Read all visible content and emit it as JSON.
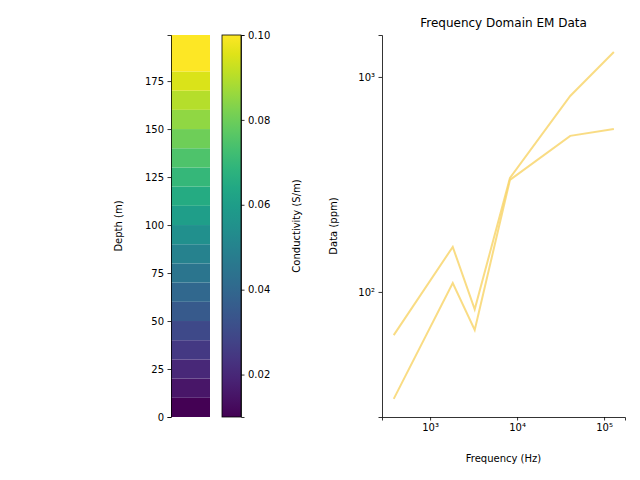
{
  "chart_data": [
    {
      "type": "layers",
      "ylabel": "Depth (m)",
      "depths": [
        0,
        10,
        20,
        30,
        40,
        50,
        60,
        70,
        80,
        90,
        100,
        110,
        120,
        130,
        140,
        150,
        160,
        170,
        180
      ],
      "values": [
        0.01,
        0.015,
        0.02,
        0.025,
        0.03,
        0.035,
        0.04,
        0.045,
        0.05,
        0.055,
        0.06,
        0.065,
        0.07,
        0.075,
        0.08,
        0.085,
        0.09,
        0.095,
        0.1
      ],
      "ylim": [
        0,
        199
      ],
      "yticks": [
        0,
        25,
        50,
        75,
        100,
        125,
        150,
        175
      ],
      "tick_labels": "y",
      "colorbar": {
        "label": "Conductivity (S/m)",
        "range": [
          0.01,
          0.1
        ],
        "ticks": [
          0.02,
          0.04,
          0.06,
          0.08,
          {
            "value": 0.1,
            "label": "0.10"
          }
        ]
      }
    },
    {
      "type": "line",
      "title": "Frequency Domain EM Data",
      "xlabel": "Frequency (Hz)",
      "ylabel": "Data (ppm)",
      "log": true,
      "x": [
        382,
        1822,
        3258,
        8282,
        40820,
        129550
      ],
      "series": [
        {
          "color": "#f8d66e",
          "values": [
            63,
            162,
            83,
            339,
            816,
            1306
          ]
        },
        {
          "color": "#f8d66e",
          "values": [
            31.8,
            110,
            66.5,
            332,
            532,
            573
          ]
        }
      ],
      "xlim": [
        280,
        174000
      ],
      "ylim": [
        26.2,
        1567
      ],
      "xticks": [
        {
          "value": 1000,
          "label": "10³"
        },
        {
          "value": 10000,
          "label": "10⁴"
        },
        {
          "value": 100000,
          "label": "10⁵"
        }
      ],
      "yticks": [
        {
          "value": 100,
          "label": "10²"
        },
        {
          "value": 1000,
          "label": "10³"
        }
      ]
    }
  ]
}
